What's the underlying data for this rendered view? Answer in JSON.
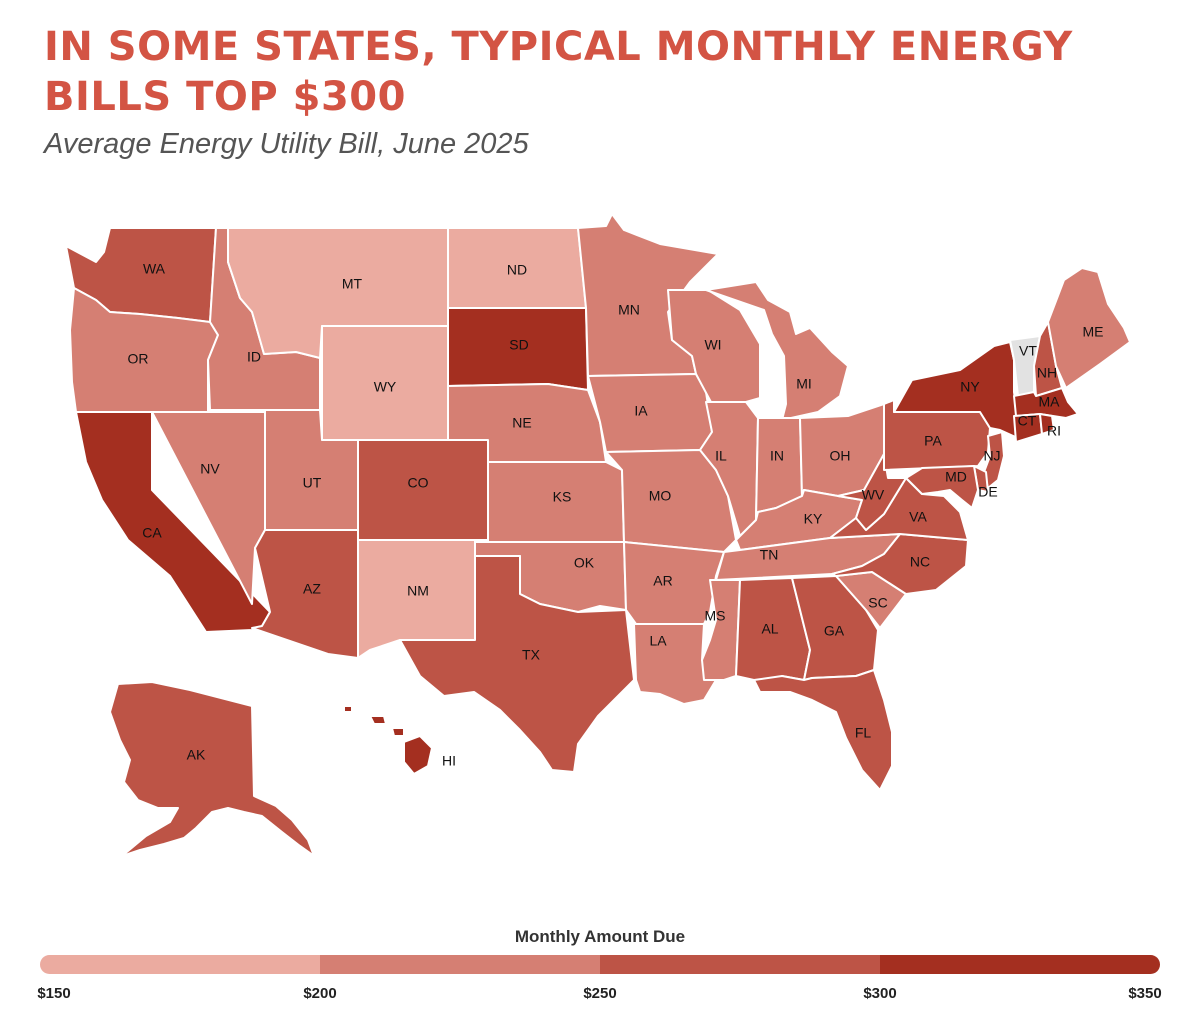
{
  "title": "IN SOME STATES, TYPICAL MONTHLY ENERGY BILLS TOP $300",
  "subtitle": "Average Energy Utility Bill, June 2025",
  "legend": {
    "title": "Monthly Amount Due",
    "ticks": [
      "$150",
      "$200",
      "$250",
      "$300",
      "$350"
    ],
    "bins": [
      {
        "range": "$150–$200",
        "color": "#ebaba0"
      },
      {
        "range": "$200–$250",
        "color": "#d57f73"
      },
      {
        "range": "$250–$300",
        "color": "#bd5446"
      },
      {
        "range": "$300–$350",
        "color": "#a42f20"
      }
    ],
    "no_data_color": "#e2e2e2"
  },
  "chart_data": {
    "type": "choropleth",
    "value_unit": "USD per month, range bin",
    "states": [
      {
        "code": "WA",
        "bin": "$250–$300"
      },
      {
        "code": "OR",
        "bin": "$200–$250"
      },
      {
        "code": "CA",
        "bin": "$300–$350"
      },
      {
        "code": "ID",
        "bin": "$200–$250"
      },
      {
        "code": "NV",
        "bin": "$200–$250"
      },
      {
        "code": "MT",
        "bin": "$150–$200"
      },
      {
        "code": "WY",
        "bin": "$150–$200"
      },
      {
        "code": "UT",
        "bin": "$200–$250"
      },
      {
        "code": "AZ",
        "bin": "$250–$300"
      },
      {
        "code": "CO",
        "bin": "$250–$300"
      },
      {
        "code": "NM",
        "bin": "$150–$200"
      },
      {
        "code": "ND",
        "bin": "$150–$200"
      },
      {
        "code": "SD",
        "bin": "$300–$350"
      },
      {
        "code": "NE",
        "bin": "$200–$250"
      },
      {
        "code": "KS",
        "bin": "$200–$250"
      },
      {
        "code": "OK",
        "bin": "$200–$250"
      },
      {
        "code": "TX",
        "bin": "$250–$300"
      },
      {
        "code": "MN",
        "bin": "$200–$250"
      },
      {
        "code": "IA",
        "bin": "$200–$250"
      },
      {
        "code": "MO",
        "bin": "$200–$250"
      },
      {
        "code": "AR",
        "bin": "$200–$250"
      },
      {
        "code": "LA",
        "bin": "$200–$250"
      },
      {
        "code": "WI",
        "bin": "$200–$250"
      },
      {
        "code": "IL",
        "bin": "$200–$250"
      },
      {
        "code": "MI",
        "bin": "$200–$250"
      },
      {
        "code": "IN",
        "bin": "$200–$250"
      },
      {
        "code": "OH",
        "bin": "$200–$250"
      },
      {
        "code": "KY",
        "bin": "$200–$250"
      },
      {
        "code": "TN",
        "bin": "$200–$250"
      },
      {
        "code": "MS",
        "bin": "$200–$250"
      },
      {
        "code": "AL",
        "bin": "$250–$300"
      },
      {
        "code": "GA",
        "bin": "$250–$300"
      },
      {
        "code": "FL",
        "bin": "$250–$300"
      },
      {
        "code": "SC",
        "bin": "$200–$250"
      },
      {
        "code": "NC",
        "bin": "$250–$300"
      },
      {
        "code": "VA",
        "bin": "$250–$300"
      },
      {
        "code": "WV",
        "bin": "$250–$300"
      },
      {
        "code": "PA",
        "bin": "$250–$300"
      },
      {
        "code": "NY",
        "bin": "$300–$350"
      },
      {
        "code": "VT",
        "bin": "no data"
      },
      {
        "code": "NH",
        "bin": "$250–$300"
      },
      {
        "code": "ME",
        "bin": "$200–$250"
      },
      {
        "code": "MA",
        "bin": "$300–$350"
      },
      {
        "code": "RI",
        "bin": "$300–$350"
      },
      {
        "code": "CT",
        "bin": "$300–$350"
      },
      {
        "code": "NJ",
        "bin": "$250–$300"
      },
      {
        "code": "DE",
        "bin": "$250–$300"
      },
      {
        "code": "MD",
        "bin": "$250–$300"
      },
      {
        "code": "AK",
        "bin": "$250–$300"
      },
      {
        "code": "HI",
        "bin": "$300–$350"
      }
    ]
  }
}
